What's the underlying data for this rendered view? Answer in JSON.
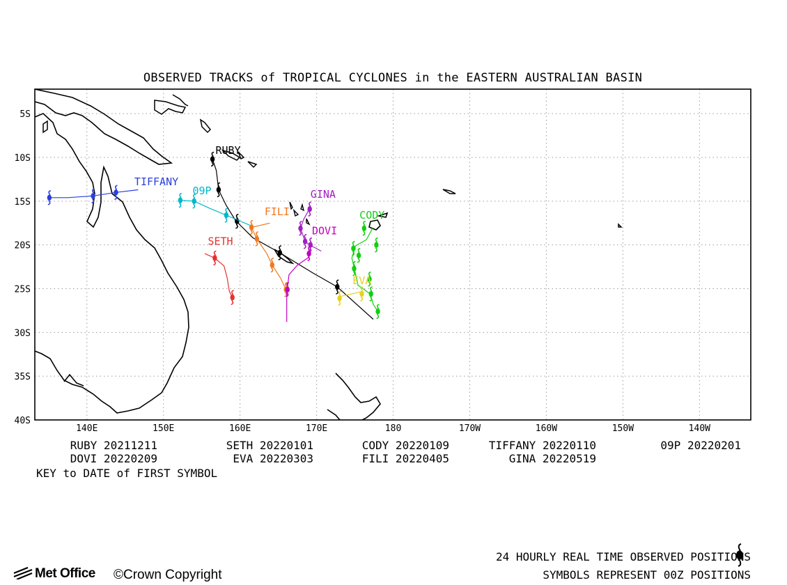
{
  "title": "OBSERVED TRACKS of TROPICAL CYCLONES in the EASTERN AUSTRALIAN BASIN",
  "map": {
    "lon_range": [
      133.2,
      226.7
    ],
    "lat_range": [
      -40,
      -2.2
    ],
    "lon_ticks": [
      {
        "lon": 140,
        "label": "140E"
      },
      {
        "lon": 150,
        "label": "150E"
      },
      {
        "lon": 160,
        "label": "160E"
      },
      {
        "lon": 170,
        "label": "170E"
      },
      {
        "lon": 180,
        "label": "180"
      },
      {
        "lon": 190,
        "label": "170W"
      },
      {
        "lon": 200,
        "label": "160W"
      },
      {
        "lon": 210,
        "label": "150W"
      },
      {
        "lon": 220,
        "label": "140W"
      }
    ],
    "lat_ticks": [
      {
        "lat": -5,
        "label": "5S"
      },
      {
        "lat": -10,
        "label": "10S"
      },
      {
        "lat": -15,
        "label": "15S"
      },
      {
        "lat": -20,
        "label": "20S"
      },
      {
        "lat": -25,
        "label": "25S"
      },
      {
        "lat": -30,
        "label": "30S"
      },
      {
        "lat": -35,
        "label": "35S"
      },
      {
        "lat": -40,
        "label": "40S"
      }
    ],
    "grid": "dotted"
  },
  "tracks": [
    {
      "name": "RUBY",
      "color": "#000000",
      "label_at": [
        156.8,
        -9.6
      ],
      "path": [
        [
          156.4,
          -10.2
        ],
        [
          156.9,
          -11.5
        ],
        [
          157.2,
          -13.7
        ],
        [
          158.2,
          -15.5
        ],
        [
          159.4,
          -17.2
        ],
        [
          161.7,
          -19.2
        ],
        [
          165.2,
          -20.9
        ],
        [
          169.5,
          -23.2
        ],
        [
          172.7,
          -24.8
        ],
        [
          177.4,
          -28.5
        ]
      ],
      "symbols": [
        [
          156.4,
          -10.2
        ],
        [
          157.2,
          -13.7
        ],
        [
          159.6,
          -17.3
        ],
        [
          165.2,
          -20.9
        ],
        [
          172.7,
          -24.8
        ]
      ]
    },
    {
      "name": "TIFFANY",
      "color": "#2a3fe0",
      "label_at": [
        146.2,
        -13.2
      ],
      "path": [
        [
          135.1,
          -14.6
        ],
        [
          137.5,
          -14.6
        ],
        [
          140.8,
          -14.4
        ],
        [
          143.8,
          -14.0
        ],
        [
          146.7,
          -13.7
        ]
      ],
      "symbols": [
        [
          135.1,
          -14.6
        ],
        [
          140.8,
          -14.4
        ],
        [
          143.8,
          -14.0
        ]
      ]
    },
    {
      "name": "09P",
      "color": "#00b8c8",
      "label_at": [
        153.8,
        -14.2
      ],
      "path": [
        [
          152.2,
          -14.9
        ],
        [
          154.0,
          -15.0
        ],
        [
          156.0,
          -15.8
        ],
        [
          158.2,
          -16.6
        ],
        [
          159.8,
          -17.2
        ],
        [
          161.7,
          -17.9
        ]
      ],
      "symbols": [
        [
          152.2,
          -14.9
        ],
        [
          154.0,
          -15.0
        ],
        [
          158.2,
          -16.6
        ]
      ]
    },
    {
      "name": "FILI",
      "color": "#f07820",
      "label_at": [
        163.2,
        -16.6
      ],
      "path": [
        [
          163.9,
          -17.5
        ],
        [
          161.5,
          -18.0
        ],
        [
          162.2,
          -19.3
        ],
        [
          163.5,
          -21.0
        ],
        [
          164.2,
          -22.3
        ],
        [
          165.3,
          -23.8
        ],
        [
          166.0,
          -25.1
        ]
      ],
      "symbols": [
        [
          161.5,
          -18.0
        ],
        [
          162.2,
          -19.3
        ],
        [
          164.2,
          -22.3
        ],
        [
          166.0,
          -25.1
        ]
      ]
    },
    {
      "name": "SETH",
      "color": "#e83030",
      "label_at": [
        155.8,
        -20.0
      ],
      "path": [
        [
          155.4,
          -21.0
        ],
        [
          156.7,
          -21.5
        ],
        [
          157.9,
          -22.4
        ],
        [
          158.3,
          -23.7
        ],
        [
          158.6,
          -25.3
        ],
        [
          159.0,
          -26.0
        ]
      ],
      "symbols": [
        [
          156.7,
          -21.5
        ],
        [
          159.0,
          -26.0
        ]
      ]
    },
    {
      "name": "GINA",
      "color": "#a020c0",
      "label_at": [
        169.2,
        -14.6
      ],
      "path": [
        [
          169.2,
          -15.5
        ],
        [
          168.8,
          -16.3
        ],
        [
          168.3,
          -17.1
        ],
        [
          167.9,
          -18.1
        ],
        [
          168.5,
          -19.6
        ],
        [
          169.3,
          -20.1
        ],
        [
          170.6,
          -20.7
        ]
      ],
      "symbols": [
        [
          169.1,
          -15.9
        ],
        [
          167.9,
          -18.1
        ],
        [
          168.5,
          -19.6
        ],
        [
          169.2,
          -20.0
        ]
      ]
    },
    {
      "name": "DOVI",
      "color": "#c000c0",
      "label_at": [
        169.4,
        -18.8
      ],
      "path": [
        [
          169.2,
          -20.1
        ],
        [
          169.0,
          -21.4
        ],
        [
          167.5,
          -22.3
        ],
        [
          166.4,
          -23.4
        ],
        [
          166.1,
          -25.5
        ],
        [
          166.1,
          -28.8
        ]
      ],
      "symbols": [
        [
          169.0,
          -21.0
        ],
        [
          166.2,
          -25.1
        ]
      ]
    },
    {
      "name": "CODY",
      "color": "#10d010",
      "label_at": [
        175.6,
        -17.0
      ],
      "path": [
        [
          177.3,
          -18.1
        ],
        [
          176.5,
          -19.4
        ],
        [
          175.1,
          -20.1
        ],
        [
          174.6,
          -21.5
        ],
        [
          174.9,
          -22.6
        ],
        [
          175.4,
          -24.6
        ],
        [
          177.0,
          -25.6
        ],
        [
          177.4,
          -26.8
        ],
        [
          178.0,
          -27.6
        ]
      ],
      "symbols": [
        [
          176.2,
          -18.1
        ],
        [
          174.8,
          -20.4
        ],
        [
          175.5,
          -21.2
        ],
        [
          177.8,
          -20.0
        ],
        [
          174.9,
          -22.7
        ],
        [
          177.1,
          -25.6
        ],
        [
          178.0,
          -27.6
        ],
        [
          176.9,
          -23.9
        ]
      ]
    },
    {
      "name": "EVA",
      "color": "#e8d020",
      "label_at": [
        174.7,
        -24.5
      ],
      "path": [
        [
          173.0,
          -25.9
        ],
        [
          174.6,
          -25.6
        ],
        [
          176.0,
          -25.3
        ]
      ],
      "symbols": [
        [
          173.0,
          -26.1
        ],
        [
          175.9,
          -25.6
        ]
      ]
    }
  ],
  "key": [
    {
      "name": "RUBY",
      "date": "20211211"
    },
    {
      "name": "SETH",
      "date": "20220101"
    },
    {
      "name": "CODY",
      "date": "20220109"
    },
    {
      "name": "TIFFANY",
      "date": "20220110"
    },
    {
      "name": "09P",
      "date": "20220201"
    },
    {
      "name": "DOVI",
      "date": "20220209"
    },
    {
      "name": "EVA",
      "date": "20220303"
    },
    {
      "name": "FILI",
      "date": "20220405"
    },
    {
      "name": "GINA",
      "date": "20220519"
    }
  ],
  "key_note": "KEY to DATE of FIRST SYMBOL",
  "footer": {
    "line1": "24 HOURLY REAL TIME OBSERVED POSITIONS",
    "line2": "SYMBOLS REPRESENT 00Z POSITIONS",
    "logo": "Met Office",
    "copyright": "©Crown Copyright",
    "symbol_icon": "cyclone-symbol-icon"
  }
}
